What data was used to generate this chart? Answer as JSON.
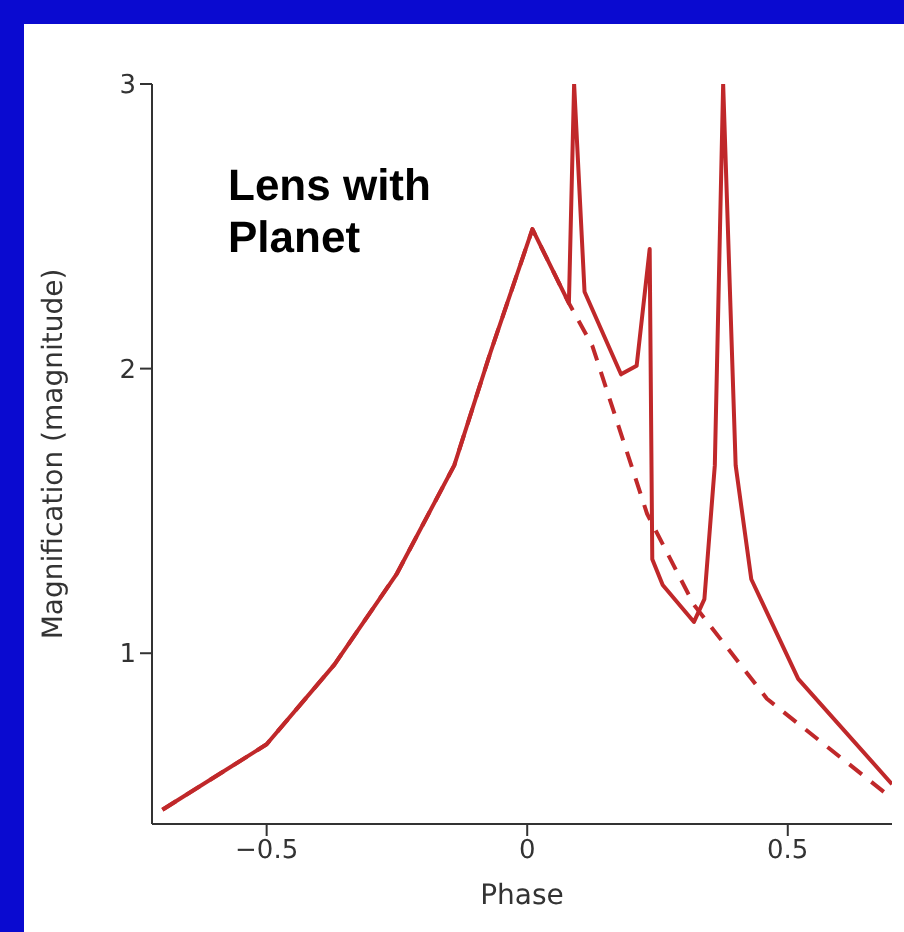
{
  "chart_data": {
    "type": "line",
    "title": "Lens with Planet",
    "xlabel": "Phase",
    "ylabel": "Magnification (magnitude)",
    "xlim": [
      -0.72,
      0.7
    ],
    "xticks": [
      -0.5,
      0,
      0.5
    ],
    "ylim": [
      0.4,
      3
    ],
    "yticks": [
      1,
      2,
      3
    ],
    "series": [
      {
        "color": "#c0282a",
        "line_style": "solid",
        "x": [
          -0.7,
          -0.5,
          -0.37,
          -0.25,
          -0.14,
          -0.07,
          0.01,
          0.08,
          0.09,
          0.11,
          0.18,
          0.21,
          0.235,
          0.24,
          0.26,
          0.32,
          0.34,
          0.36,
          0.376,
          0.4,
          0.43,
          0.52,
          0.7
        ],
        "values": [
          0.45,
          0.68,
          0.96,
          1.28,
          1.66,
          2.06,
          2.49,
          2.23,
          3.0,
          2.27,
          1.98,
          2.01,
          2.42,
          1.33,
          1.24,
          1.11,
          1.19,
          1.66,
          3.0,
          1.66,
          1.26,
          0.91,
          0.54
        ]
      },
      {
        "color": "#c0282a",
        "line_style": "dashed",
        "x": [
          -0.7,
          -0.5,
          -0.37,
          -0.25,
          -0.14,
          -0.07,
          0.01,
          0.08,
          0.125,
          0.23,
          0.32,
          0.46,
          0.7
        ],
        "values": [
          0.45,
          0.68,
          0.96,
          1.28,
          1.66,
          2.06,
          2.49,
          2.23,
          2.08,
          1.49,
          1.17,
          0.84,
          0.49
        ]
      }
    ]
  }
}
